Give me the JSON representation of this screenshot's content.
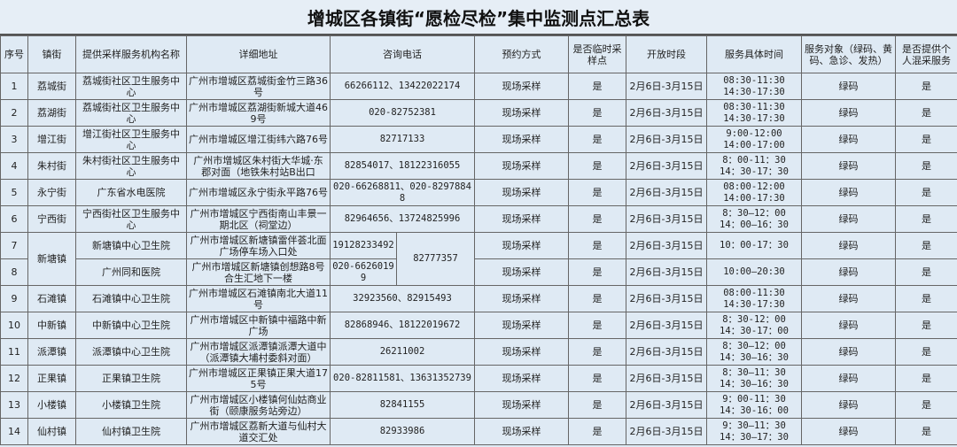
{
  "title": "增城区各镇街“愿检尽检”集中监测点汇总表",
  "headers": [
    "序号",
    "镇街",
    "提供采样服务机构名称",
    "详细地址",
    "咨询电话",
    "预约方式",
    "是否临时采样点",
    "开放时段",
    "服务具体时间",
    "服务对象（绿码、黄码、急诊、发热）",
    "是否提供个人混采服务"
  ],
  "rows": [
    {
      "no": "1",
      "town": "荔城街",
      "org": "荔城街社区卫生服务中心",
      "addr": "广州市增城区荔城街金竹三路36号",
      "phone": "66266112、13422022174",
      "book": "现场采样",
      "temp": "是",
      "period": "2月6日-3月15日",
      "time": [
        "08:30-11:30",
        "14:30-17:30"
      ],
      "target": "绿码",
      "mix": "是"
    },
    {
      "no": "2",
      "town": "荔湖街",
      "org": "荔城街社区卫生服务中心",
      "addr": "广州市增城区荔湖街新城大道469号",
      "phone": "020-82752381",
      "book": "现场采样",
      "temp": "是",
      "period": "2月6日-3月15日",
      "time": [
        "08:30-11:30",
        "14:30-17:30"
      ],
      "target": "绿码",
      "mix": "是"
    },
    {
      "no": "3",
      "town": "增江街",
      "org": "增江街社区卫生服务中心",
      "addr": "广州市增城区增江街纬六路76号",
      "phone": "82717133",
      "book": "现场采样",
      "temp": "是",
      "period": "2月6日-3月15日",
      "time": [
        "9:00-12:00",
        "14:00-17:00"
      ],
      "target": "绿码",
      "mix": "是"
    },
    {
      "no": "4",
      "town": "朱村街",
      "org": "朱村街社区卫生服务中心",
      "addr": "广州市增城区朱村街大华城·东郡对面（地铁朱村站B出口",
      "phone": "82854017、18122316055",
      "book": "现场采样",
      "temp": "是",
      "period": "2月6日-3月15日",
      "time": [
        "8：00-11：30",
        "14：30-17：30"
      ],
      "target": "绿码",
      "mix": "是"
    },
    {
      "no": "5",
      "town": "永宁街",
      "org": "广东省水电医院",
      "addr": "广州市增城区永宁街永平路76号",
      "phone": "020-66268811、020-82978848",
      "book": "现场采样",
      "temp": "是",
      "period": "2月6日-3月15日",
      "time": [
        "08:00-12:00",
        "14:00-17:30"
      ],
      "target": "绿码",
      "mix": "是"
    },
    {
      "no": "6",
      "town": "宁西街",
      "org": "宁西街社区卫生服务中心",
      "addr": "广州市增城区宁西街南山丰景一期北区（祠堂边）",
      "phone": "82964656、13724825996",
      "book": "现场采样",
      "temp": "是",
      "period": "2月6日-3月15日",
      "time": [
        "8：30—12：00",
        "14：00—16：30"
      ],
      "target": "绿码",
      "mix": "是"
    },
    {
      "no": "7",
      "town": "新塘镇",
      "org": "新塘镇中心卫生院",
      "addr": "广州市增城区新塘镇雷伴荟北面广场停车场入口处",
      "phone": "19128233492",
      "phone_shared": "82777357",
      "book": "现场采样",
      "temp": "是",
      "period": "2月6日-3月15日",
      "time": [
        "10：00-17：30"
      ],
      "target": "绿码",
      "mix": "是"
    },
    {
      "no": "8",
      "org": "广州同和医院",
      "addr": "广州市增城区新塘镇创想路8号合生汇地下一楼",
      "phone": "020-66260199",
      "book": "现场采样",
      "temp": "是",
      "period": "2月6日-3月15日",
      "time": [
        "10:00—20:30"
      ],
      "target": "绿码",
      "mix": "是"
    },
    {
      "no": "9",
      "town": "石滩镇",
      "org": "石滩镇中心卫生院",
      "addr": "广州市增城区石滩镇南北大道11号",
      "phone": "32923560、82915493",
      "book": "现场采样",
      "temp": "是",
      "period": "2月6日-3月15日",
      "time": [
        "08:00-11:30",
        "14:30-17:30"
      ],
      "target": "绿码",
      "mix": "是"
    },
    {
      "no": "10",
      "town": "中新镇",
      "org": "中新镇中心卫生院",
      "addr": "广州市增城区中新镇中福路中新广场",
      "phone": "82868946、18122019672",
      "book": "现场采样",
      "temp": "是",
      "period": "2月6日-3月15日",
      "time": [
        "8：30-12：00",
        "14：30-17：00"
      ],
      "target": "绿码",
      "mix": "是"
    },
    {
      "no": "11",
      "town": "派潭镇",
      "org": "派潭镇中心卫生院",
      "addr": "广州市增城区派潭镇派潭大道中（派潭镇大埔村委斜对面）",
      "phone": "26211002",
      "book": "现场采样",
      "temp": "是",
      "period": "2月6日-3月15日",
      "time": [
        "8：30—12：00",
        "14：30—16：30"
      ],
      "target": "绿码",
      "mix": "是"
    },
    {
      "no": "12",
      "town": "正果镇",
      "org": "正果镇卫生院",
      "addr": "广州市增城区正果镇正果大道175号",
      "phone": "020-82811581、13631352739",
      "book": "现场采样",
      "temp": "是",
      "period": "2月6日-3月15日",
      "time": [
        "8：30—11：30",
        "14：30—16：30"
      ],
      "target": "绿码",
      "mix": "是"
    },
    {
      "no": "13",
      "town": "小楼镇",
      "org": "小楼镇卫生院",
      "addr": "广州市增城区小楼镇何仙姑商业街（颐康服务站旁边）",
      "phone": "82841155",
      "book": "现场采样",
      "temp": "是",
      "period": "2月6日-3月15日",
      "time": [
        "9：00-11：30",
        "14：30-16：00"
      ],
      "target": "绿码",
      "mix": "是"
    },
    {
      "no": "14",
      "town": "仙村镇",
      "org": "仙村镇卫生院",
      "addr": "广州市增城区荔新大道与仙村大道交汇处",
      "phone": "82933986",
      "book": "现场采样",
      "temp": "是",
      "period": "2月6日-3月15日",
      "time": [
        "9：30—11：30",
        "14：30—17：30"
      ],
      "target": "绿码",
      "mix": "是"
    }
  ]
}
